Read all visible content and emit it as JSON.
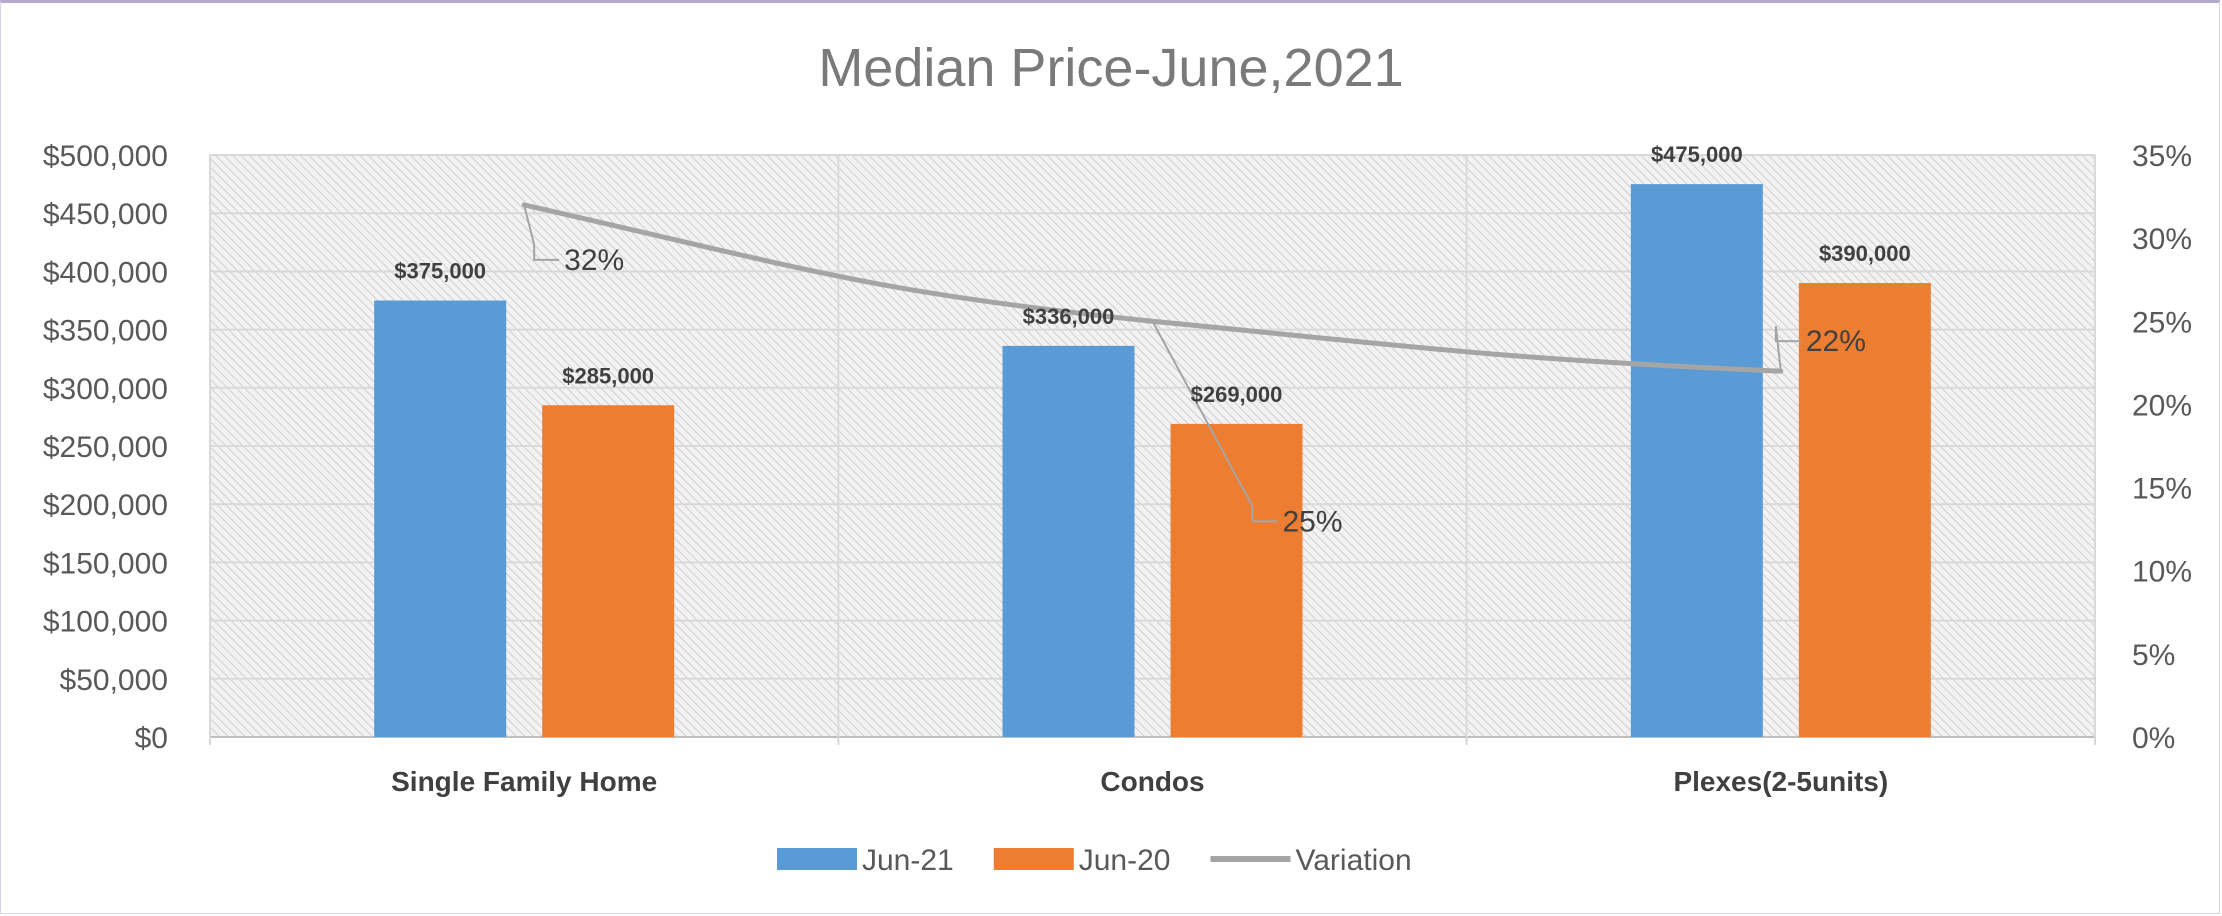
{
  "chart_data": {
    "type": "bar",
    "title": "Median Price-June,2021",
    "categories": [
      "Single Family Home",
      "Condos",
      "Plexes(2-5units)"
    ],
    "series": [
      {
        "name": "Jun-21",
        "type": "bar",
        "values": [
          375000,
          336000,
          475000
        ],
        "labels": [
          "$375,000",
          "$336,000",
          "$475,000"
        ],
        "color": "#5b9bd5"
      },
      {
        "name": "Jun-20",
        "type": "bar",
        "values": [
          285000,
          269000,
          390000
        ],
        "labels": [
          "$285,000",
          "$269,000",
          "$390,000"
        ],
        "color": "#ed7d31"
      },
      {
        "name": "Variation",
        "type": "line",
        "axis": "secondary",
        "values": [
          32,
          25,
          22
        ],
        "labels": [
          "32%",
          "25%",
          "22%"
        ],
        "color": "#a5a5a5"
      }
    ],
    "y_left": {
      "min": 0,
      "max": 500000,
      "step": 50000,
      "ticks": [
        "$0",
        "$50,000",
        "$100,000",
        "$150,000",
        "$200,000",
        "$250,000",
        "$300,000",
        "$350,000",
        "$400,000",
        "$450,000",
        "$500,000"
      ]
    },
    "y_right": {
      "min": 0,
      "max": 35,
      "step": 5,
      "ticks": [
        "0%",
        "5%",
        "10%",
        "15%",
        "20%",
        "25%",
        "30%",
        "35%"
      ]
    },
    "grid": true,
    "legend_position": "bottom"
  }
}
